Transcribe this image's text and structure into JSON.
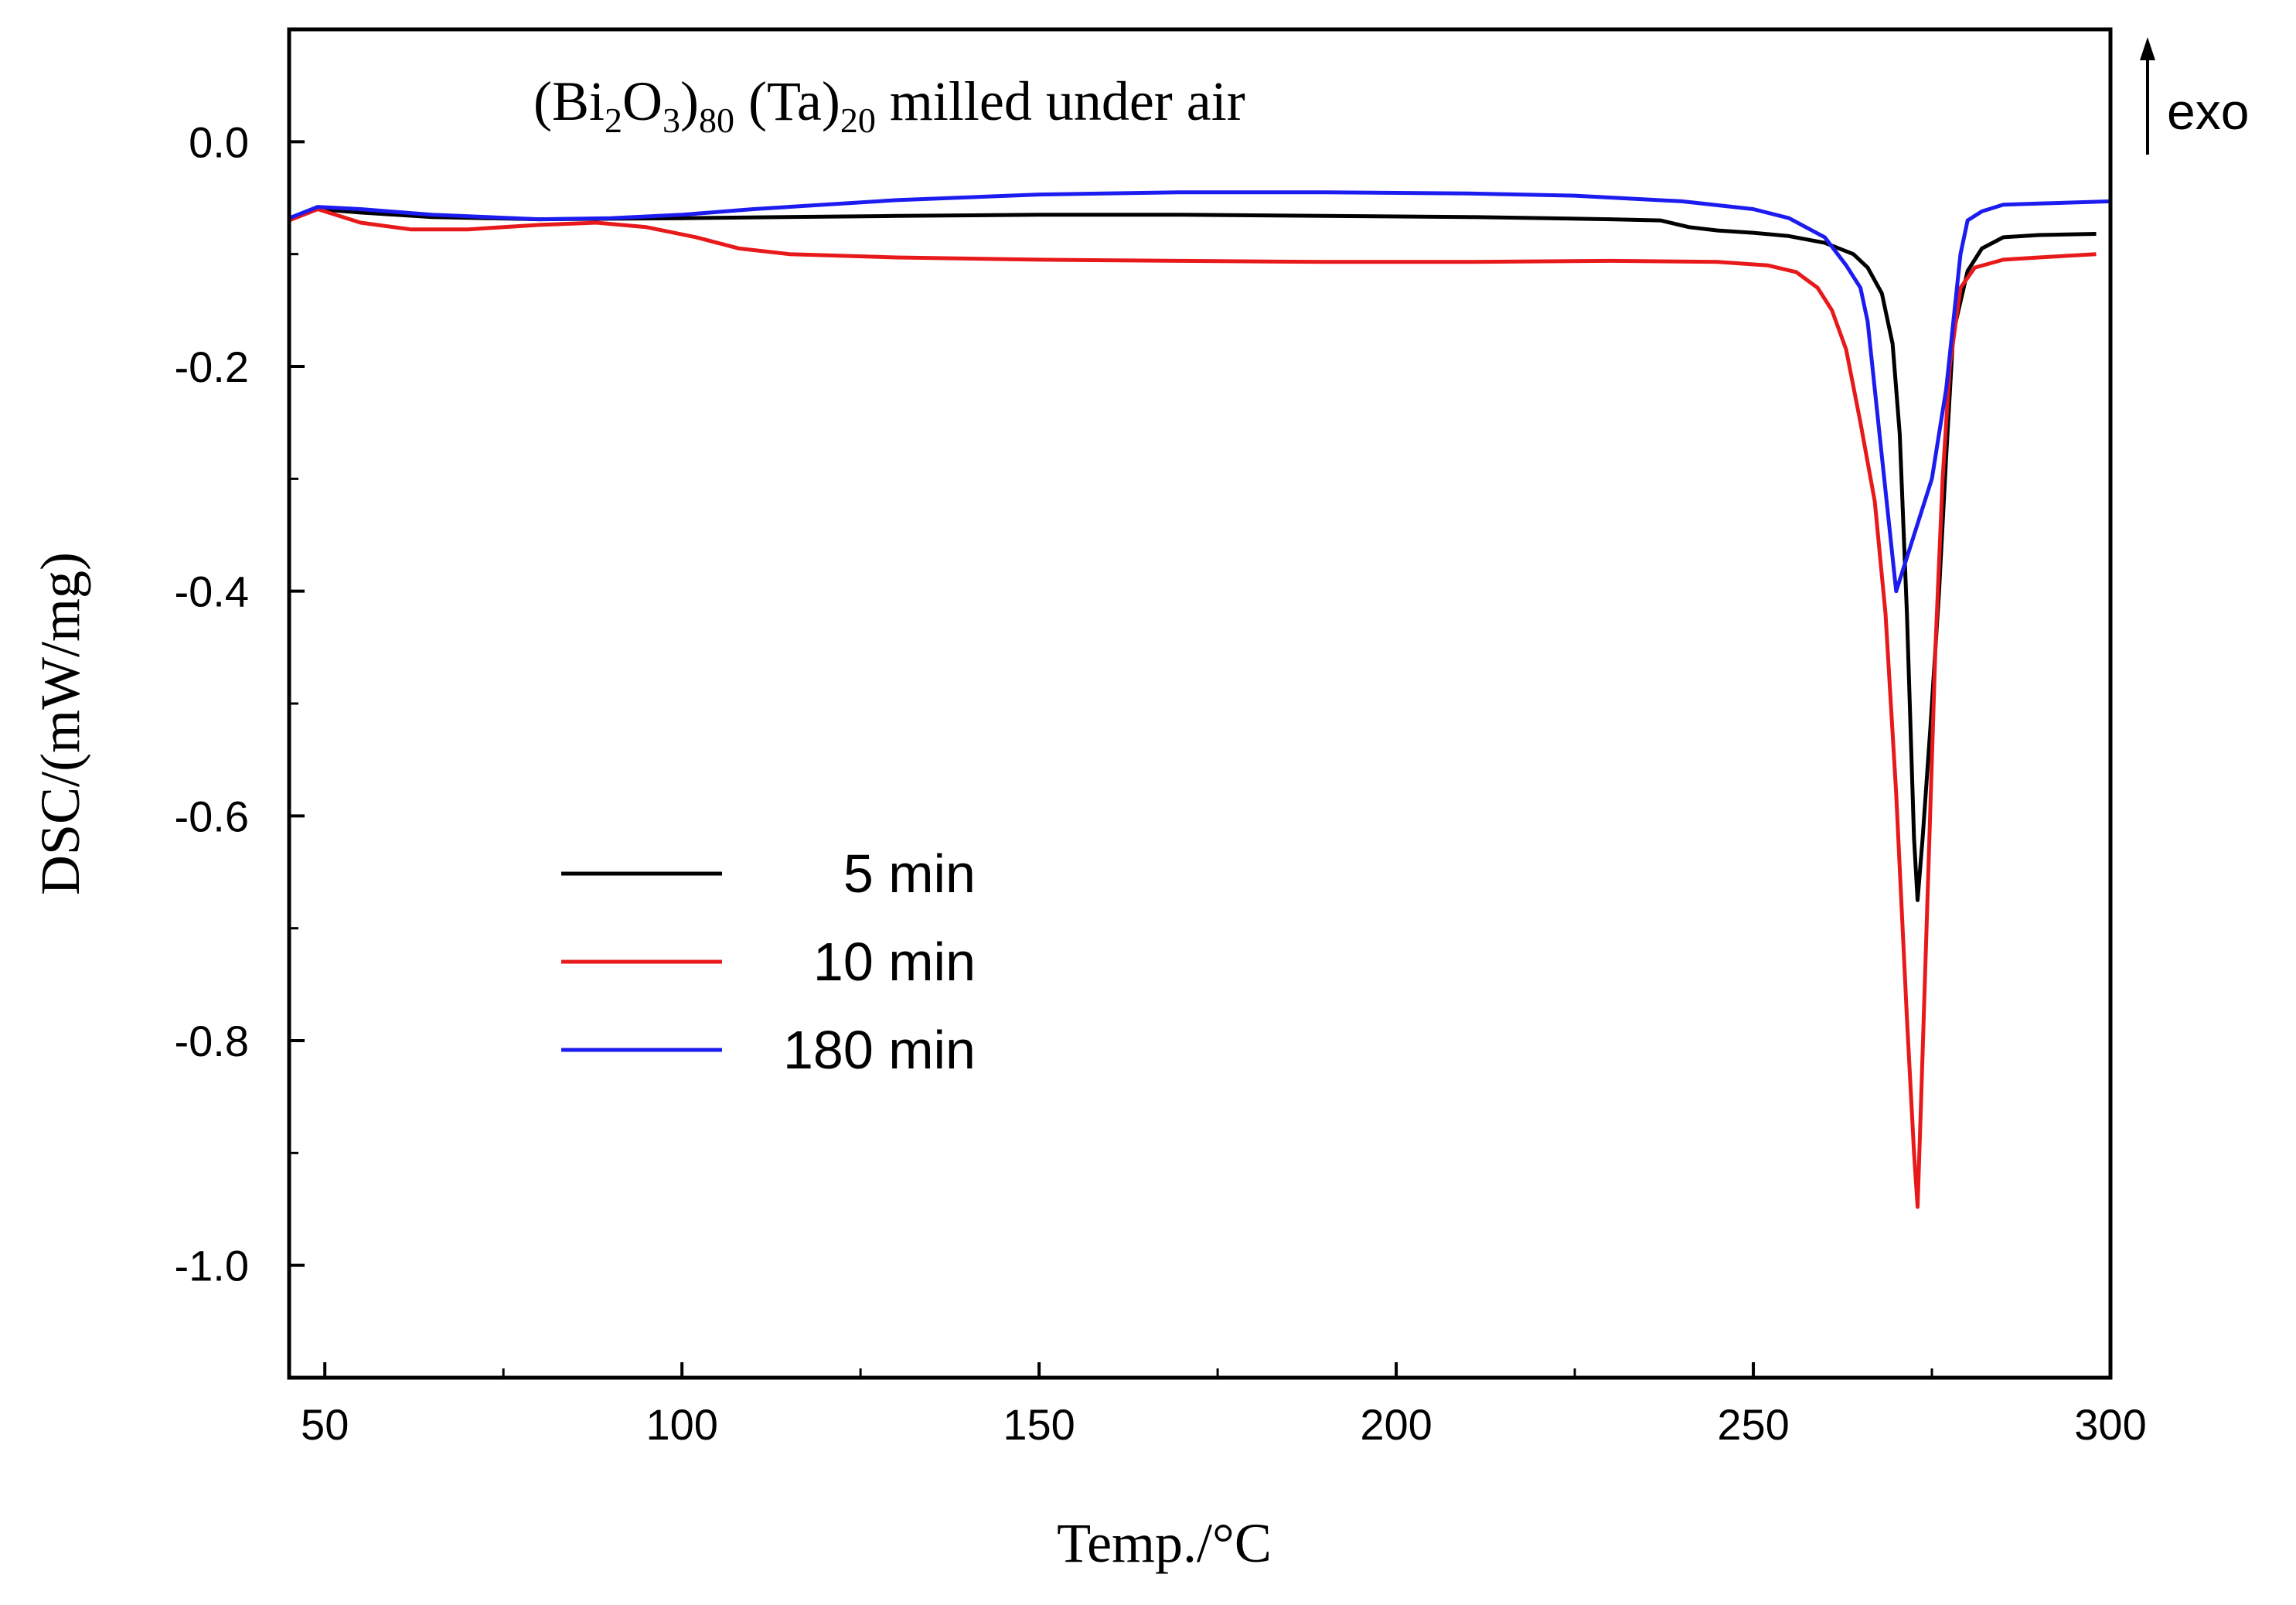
{
  "chart_data": {
    "type": "line",
    "title": {
      "parts": [
        {
          "text": "(Bi",
          "role": "base"
        },
        {
          "text": "2",
          "role": "sub"
        },
        {
          "text": "O",
          "role": "base"
        },
        {
          "text": "3",
          "role": "sub"
        },
        {
          "text": ")",
          "role": "base"
        },
        {
          "text": "80",
          "role": "sub"
        },
        {
          "text": " (Ta)",
          "role": "base"
        },
        {
          "text": "20",
          "role": "sub"
        },
        {
          "text": " milled under air",
          "role": "base"
        }
      ]
    },
    "xlabel": "Temp./°C",
    "ylabel": "DSC/(mW/mg)",
    "xlim": [
      45,
      300
    ],
    "ylim": [
      -1.1,
      0.1
    ],
    "xticks": [
      50,
      100,
      150,
      200,
      250,
      300
    ],
    "yticks": [
      0.0,
      -0.2,
      -0.4,
      -0.6,
      -0.8,
      -1.0
    ],
    "xtick_labels": [
      "50",
      "100",
      "150",
      "200",
      "250",
      "300"
    ],
    "ytick_labels": [
      "0.0",
      "-0.2",
      "-0.4",
      "-0.6",
      "-0.8",
      "-1.0"
    ],
    "x_minor_step": 25,
    "y_minor_step": 0.1,
    "grid": false,
    "legend_position": "bottom-left",
    "annotation": {
      "text": "exo",
      "arrow": "up"
    },
    "series": [
      {
        "name": "5 min",
        "legend_label": "  5 min",
        "color": "#000000",
        "points": [
          [
            45,
            -0.068
          ],
          [
            49,
            -0.06
          ],
          [
            55,
            -0.063
          ],
          [
            65,
            -0.067
          ],
          [
            80,
            -0.069
          ],
          [
            100,
            -0.068
          ],
          [
            130,
            -0.066
          ],
          [
            150,
            -0.065
          ],
          [
            170,
            -0.065
          ],
          [
            190,
            -0.066
          ],
          [
            210,
            -0.067
          ],
          [
            230,
            -0.069
          ],
          [
            237,
            -0.07
          ],
          [
            241,
            -0.076
          ],
          [
            245,
            -0.079
          ],
          [
            250,
            -0.081
          ],
          [
            255,
            -0.084
          ],
          [
            260,
            -0.09
          ],
          [
            264,
            -0.1
          ],
          [
            266,
            -0.112
          ],
          [
            268,
            -0.135
          ],
          [
            269.5,
            -0.18
          ],
          [
            270.5,
            -0.26
          ],
          [
            271.5,
            -0.42
          ],
          [
            272.5,
            -0.62
          ],
          [
            273,
            -0.675
          ],
          [
            273.7,
            -0.62
          ],
          [
            274.8,
            -0.52
          ],
          [
            276,
            -0.4
          ],
          [
            277,
            -0.28
          ],
          [
            278,
            -0.17
          ],
          [
            280,
            -0.115
          ],
          [
            282,
            -0.095
          ],
          [
            285,
            -0.085
          ],
          [
            290,
            -0.083
          ],
          [
            298,
            -0.082
          ]
        ]
      },
      {
        "name": "10 min",
        "legend_label": "10 min",
        "color": "#e8191b",
        "points": [
          [
            45,
            -0.07
          ],
          [
            49,
            -0.06
          ],
          [
            55,
            -0.072
          ],
          [
            62,
            -0.078
          ],
          [
            70,
            -0.078
          ],
          [
            80,
            -0.074
          ],
          [
            88,
            -0.072
          ],
          [
            95,
            -0.076
          ],
          [
            102,
            -0.085
          ],
          [
            108,
            -0.095
          ],
          [
            115,
            -0.1
          ],
          [
            130,
            -0.103
          ],
          [
            150,
            -0.105
          ],
          [
            170,
            -0.106
          ],
          [
            190,
            -0.107
          ],
          [
            210,
            -0.107
          ],
          [
            230,
            -0.106
          ],
          [
            245,
            -0.107
          ],
          [
            252,
            -0.11
          ],
          [
            256,
            -0.116
          ],
          [
            259,
            -0.13
          ],
          [
            261,
            -0.15
          ],
          [
            263,
            -0.185
          ],
          [
            265,
            -0.25
          ],
          [
            267,
            -0.32
          ],
          [
            268.5,
            -0.42
          ],
          [
            270,
            -0.58
          ],
          [
            271.5,
            -0.78
          ],
          [
            272.5,
            -0.9
          ],
          [
            273,
            -0.948
          ],
          [
            273.5,
            -0.85
          ],
          [
            274.5,
            -0.65
          ],
          [
            275.5,
            -0.45
          ],
          [
            276.5,
            -0.3
          ],
          [
            277.5,
            -0.2
          ],
          [
            279,
            -0.13
          ],
          [
            281,
            -0.112
          ],
          [
            285,
            -0.105
          ],
          [
            290,
            -0.103
          ],
          [
            298,
            -0.1
          ]
        ]
      },
      {
        "name": "180 min",
        "legend_label": "180 min",
        "color": "#1c1cf0",
        "points": [
          [
            45,
            -0.068
          ],
          [
            49,
            -0.058
          ],
          [
            55,
            -0.06
          ],
          [
            65,
            -0.065
          ],
          [
            80,
            -0.069
          ],
          [
            90,
            -0.068
          ],
          [
            100,
            -0.065
          ],
          [
            110,
            -0.06
          ],
          [
            130,
            -0.052
          ],
          [
            150,
            -0.047
          ],
          [
            170,
            -0.045
          ],
          [
            190,
            -0.045
          ],
          [
            210,
            -0.046
          ],
          [
            225,
            -0.048
          ],
          [
            240,
            -0.053
          ],
          [
            250,
            -0.06
          ],
          [
            255,
            -0.068
          ],
          [
            260,
            -0.085
          ],
          [
            263,
            -0.11
          ],
          [
            265,
            -0.13
          ],
          [
            266,
            -0.16
          ],
          [
            268,
            -0.28
          ],
          [
            270,
            -0.4
          ],
          [
            272,
            -0.36
          ],
          [
            275,
            -0.3
          ],
          [
            277,
            -0.22
          ],
          [
            279,
            -0.1
          ],
          [
            280,
            -0.07
          ],
          [
            282,
            -0.062
          ],
          [
            285,
            -0.056
          ],
          [
            290,
            -0.055
          ],
          [
            300,
            -0.053
          ]
        ]
      }
    ]
  }
}
